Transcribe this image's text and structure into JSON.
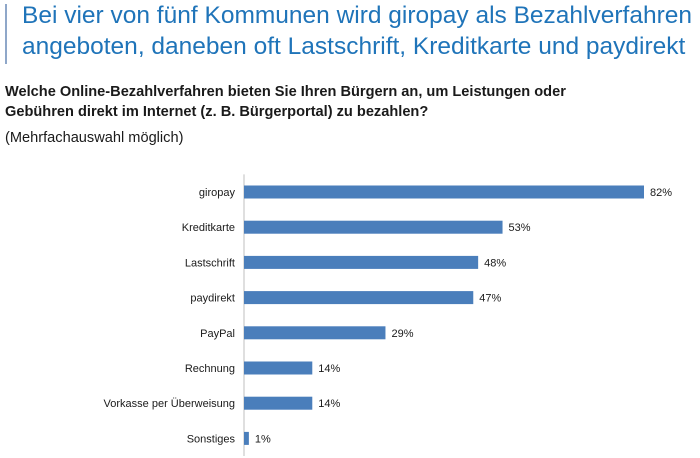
{
  "headline": {
    "line1": "Bei vier von fünf Kommunen wird giropay als Bezahlverfahren",
    "line2": "angeboten, daneben oft Lastschrift, Kreditkarte und paydirekt"
  },
  "question": {
    "line1": "Welche Online-Bezahlverfahren bieten Sie Ihren Bürgern an, um Leistungen oder",
    "line2": "Gebühren direkt im Internet (z. B. Bürgerportal) zu bezahlen?"
  },
  "note": "(Mehrfachauswahl möglich)",
  "chart_data": {
    "type": "bar",
    "orientation": "horizontal",
    "categories": [
      "giropay",
      "Kreditkarte",
      "Lastschrift",
      "paydirekt",
      "PayPal",
      "Rechnung",
      "Vorkasse per Überweisung",
      "Sonstiges"
    ],
    "values": [
      82,
      53,
      48,
      47,
      29,
      14,
      14,
      1
    ],
    "value_labels": [
      "82%",
      "53%",
      "48%",
      "47%",
      "29%",
      "14%",
      "14%",
      "1%"
    ],
    "unit": "%",
    "xlim": [
      0,
      82
    ],
    "grid": false,
    "bar_color": "#4a7ebb"
  }
}
